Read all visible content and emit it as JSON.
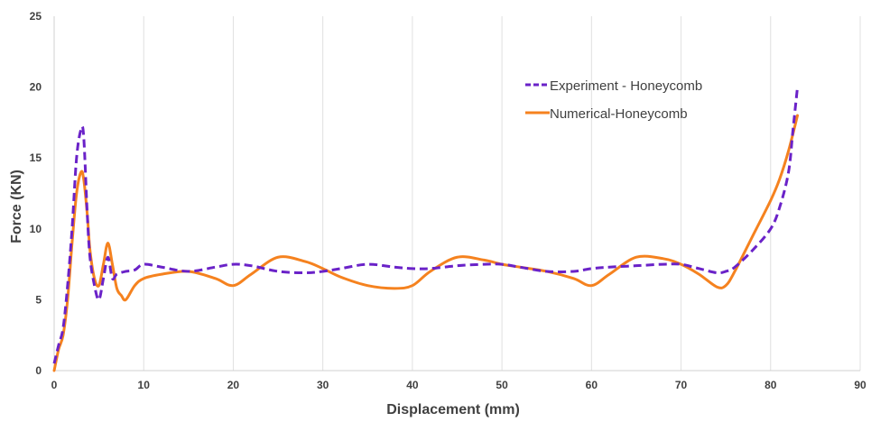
{
  "chart_data": {
    "type": "line",
    "title": "",
    "xlabel": "Displacement (mm)",
    "ylabel": "Force (KN)",
    "xlim": [
      0,
      90
    ],
    "ylim": [
      0,
      25
    ],
    "x_ticks": [
      0,
      10,
      20,
      30,
      40,
      50,
      60,
      70,
      80,
      90
    ],
    "y_ticks": [
      0,
      5,
      10,
      15,
      20,
      25
    ],
    "grid": "vertical",
    "legend_position": "top-right",
    "series": [
      {
        "name": "Experiment - Honeycomb",
        "color": "#6a22c8",
        "style": "dashed",
        "x": [
          0,
          0.5,
          1,
          1.5,
          2,
          2.5,
          3,
          3.3,
          3.7,
          4,
          4.5,
          5,
          5.5,
          6,
          6.5,
          7,
          8,
          9,
          10,
          12,
          15,
          18,
          20,
          22,
          25,
          28,
          30,
          32,
          35,
          38,
          40,
          42,
          45,
          48,
          50,
          52,
          55,
          58,
          60,
          62,
          65,
          68,
          70,
          72,
          74,
          75,
          76,
          78,
          80,
          81,
          82,
          82.5,
          83
        ],
        "y": [
          0.5,
          1.8,
          3,
          6,
          10,
          15,
          17,
          16.5,
          11,
          8,
          6,
          5,
          6.5,
          8,
          6.5,
          6.8,
          7,
          7.1,
          7.5,
          7.3,
          7,
          7.3,
          7.5,
          7.4,
          7,
          6.9,
          7,
          7.2,
          7.5,
          7.3,
          7.2,
          7.2,
          7.4,
          7.5,
          7.5,
          7.3,
          7,
          7,
          7.2,
          7.3,
          7.4,
          7.5,
          7.5,
          7.2,
          6.9,
          7,
          7.3,
          8.5,
          10,
          11.5,
          14,
          17,
          20
        ]
      },
      {
        "name": "Numerical-Honeycomb",
        "color": "#f5821f",
        "style": "solid",
        "x": [
          0,
          0.5,
          1,
          1.5,
          2,
          2.5,
          3,
          3.3,
          3.7,
          4,
          4.5,
          5,
          5.5,
          6,
          6.5,
          7,
          7.5,
          8,
          9,
          10,
          12,
          15,
          18,
          20,
          22,
          25,
          28,
          30,
          32,
          35,
          38,
          40,
          42,
          45,
          48,
          50,
          52,
          55,
          58,
          60,
          62,
          65,
          68,
          70,
          72,
          74,
          75,
          76,
          78,
          80,
          81,
          82,
          83
        ],
        "y": [
          0,
          1.5,
          2.5,
          5,
          9,
          12.5,
          14,
          13.5,
          11,
          8.5,
          6.5,
          6,
          7.5,
          9,
          7.5,
          5.8,
          5.3,
          5,
          6,
          6.5,
          6.8,
          7,
          6.5,
          6,
          6.8,
          8,
          7.7,
          7.2,
          6.6,
          6,
          5.8,
          6,
          7,
          8,
          7.8,
          7.5,
          7.3,
          7,
          6.5,
          6,
          6.8,
          8,
          7.9,
          7.5,
          6.8,
          5.9,
          6,
          7,
          9.5,
          12,
          13.5,
          15.5,
          18
        ]
      }
    ]
  }
}
